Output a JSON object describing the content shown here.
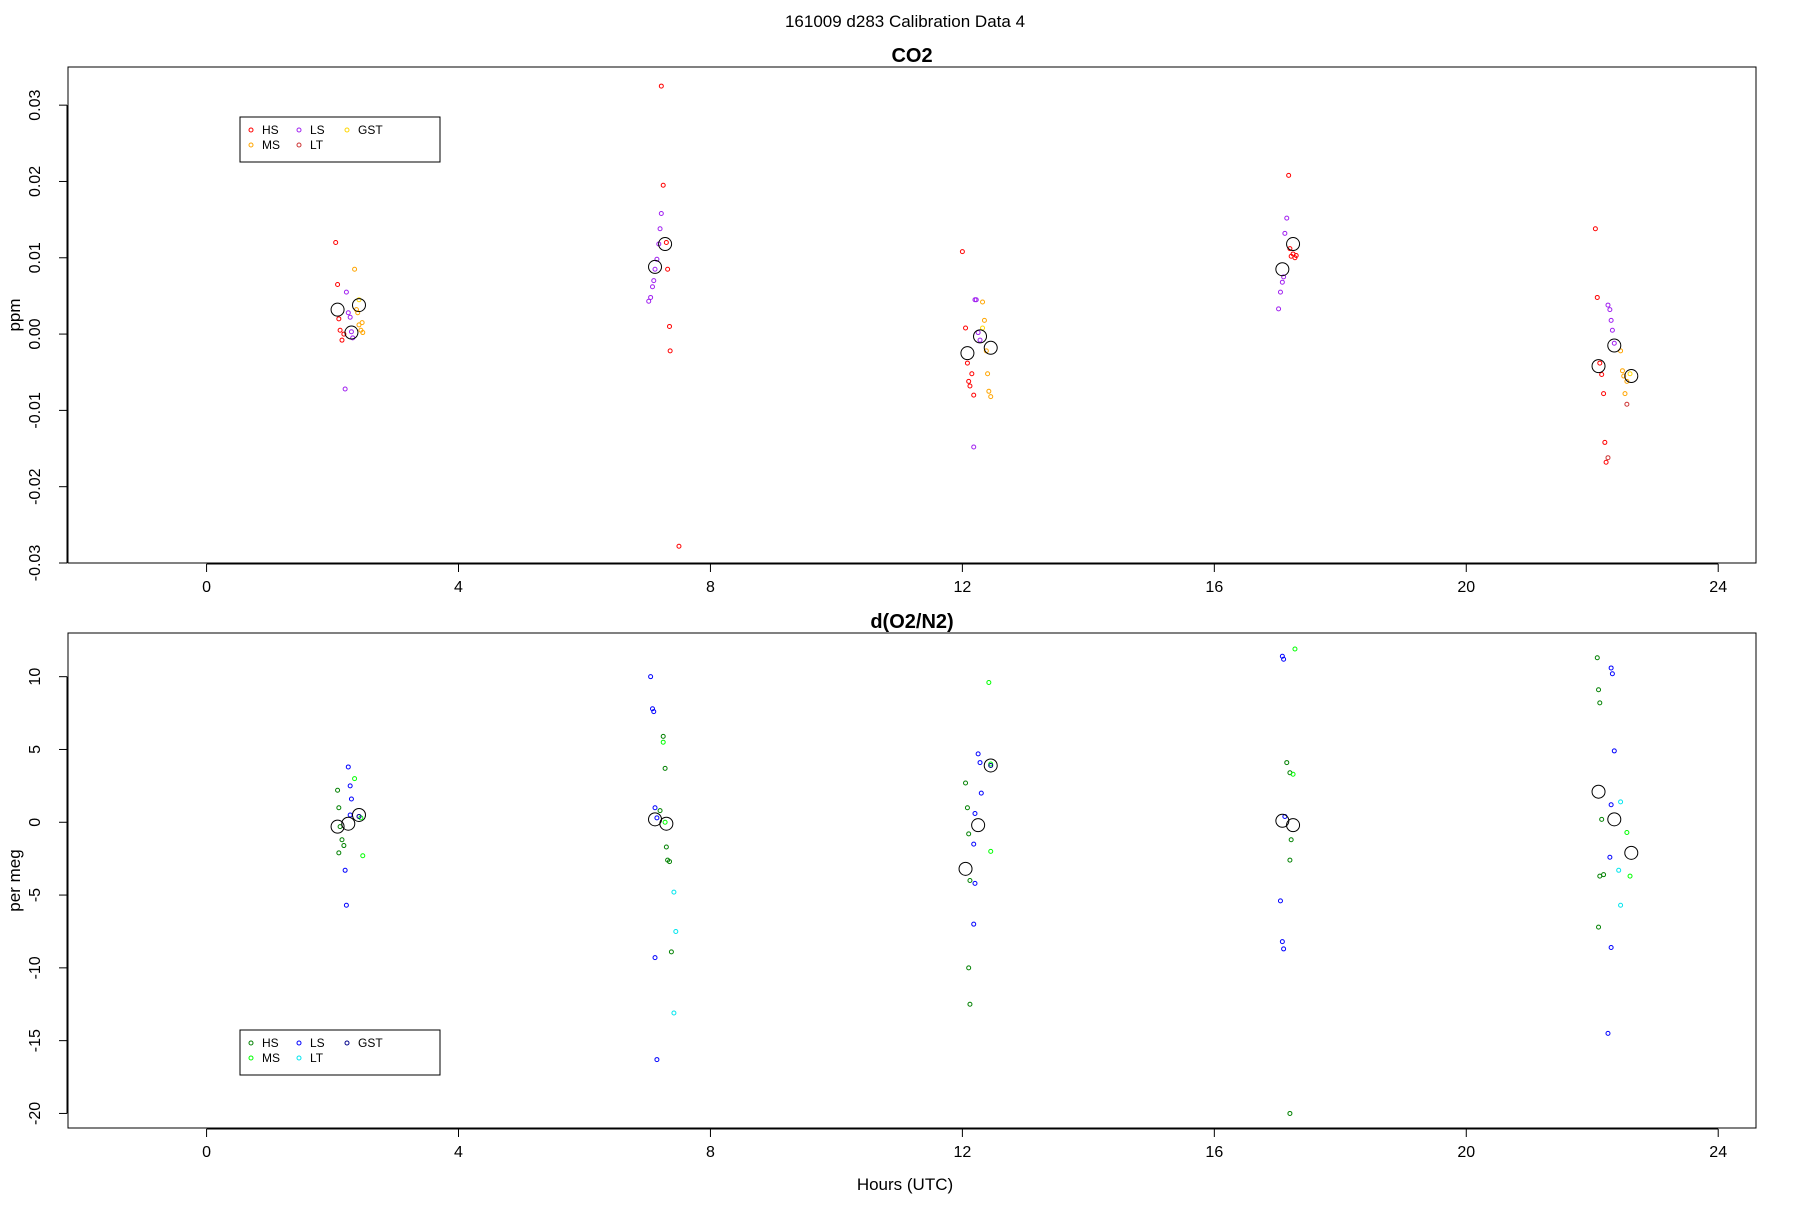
{
  "figure": {
    "title": "161009   d283   Calibration Data 4"
  },
  "colors": {
    "co2": {
      "HS": "#ff0000",
      "MS": "#ffa500",
      "LS": "#a020f0",
      "LT": "#cd3333",
      "GST": "#ffd700"
    },
    "o2": {
      "HS": "#008000",
      "MS": "#00ff00",
      "LS": "#0000ff",
      "LT": "#00e5ee",
      "GST": "#00008b"
    },
    "mean": "#000000"
  },
  "chart_data": [
    {
      "type": "scatter",
      "title": "CO2",
      "xlabel": "",
      "ylabel": "ppm",
      "xlim": [
        -2.2,
        24.6
      ],
      "ylim": [
        -0.03,
        0.035
      ],
      "xticks": [
        "0",
        "4",
        "8",
        "12",
        "16",
        "20",
        "24"
      ],
      "yticks": [
        "-0.03",
        "-0.02",
        "-0.01",
        "0.00",
        "0.01",
        "0.02",
        "0.03"
      ],
      "legend": {
        "position": "top-left",
        "entries": [
          "HS",
          "MS",
          "LS",
          "LT",
          "GST"
        ]
      },
      "series": [
        {
          "name": "HS",
          "points": [
            [
              2.05,
              0.012
            ],
            [
              2.08,
              0.0065
            ],
            [
              2.1,
              0.002
            ],
            [
              2.12,
              0.0005
            ],
            [
              2.15,
              -0.0008
            ],
            [
              2.18,
              0.0
            ],
            [
              7.22,
              0.0325
            ],
            [
              7.25,
              0.0195
            ],
            [
              7.3,
              0.012
            ],
            [
              7.32,
              0.0085
            ],
            [
              7.35,
              0.001
            ],
            [
              7.36,
              -0.0022
            ],
            [
              7.5,
              -0.0278
            ],
            [
              12.0,
              0.0108
            ],
            [
              12.05,
              0.0008
            ],
            [
              12.08,
              -0.0038
            ],
            [
              12.1,
              -0.0062
            ],
            [
              12.12,
              -0.0068
            ],
            [
              12.15,
              -0.0052
            ],
            [
              12.18,
              -0.008
            ],
            [
              17.18,
              0.0208
            ],
            [
              17.2,
              0.0112
            ],
            [
              17.22,
              0.0102
            ],
            [
              17.25,
              0.0105
            ],
            [
              17.28,
              0.01
            ],
            [
              17.3,
              0.0103
            ],
            [
              22.05,
              0.0138
            ],
            [
              22.08,
              0.0048
            ],
            [
              22.12,
              -0.0038
            ],
            [
              22.15,
              -0.0053
            ],
            [
              22.18,
              -0.0078
            ],
            [
              22.2,
              -0.0142
            ],
            [
              22.22,
              -0.0168
            ]
          ]
        },
        {
          "name": "MS",
          "points": [
            [
              2.35,
              0.0085
            ],
            [
              2.38,
              0.0032
            ],
            [
              2.4,
              0.0028
            ],
            [
              2.42,
              0.0012
            ],
            [
              2.45,
              0.0005
            ],
            [
              2.47,
              0.0015
            ],
            [
              2.48,
              0.0002
            ],
            [
              12.32,
              0.0042
            ],
            [
              12.35,
              0.0018
            ],
            [
              12.38,
              -0.0022
            ],
            [
              12.4,
              -0.0052
            ],
            [
              12.42,
              -0.0075
            ],
            [
              12.45,
              -0.0082
            ],
            [
              22.45,
              -0.0022
            ],
            [
              22.48,
              -0.0048
            ],
            [
              22.5,
              -0.0055
            ],
            [
              22.52,
              -0.0078
            ],
            [
              22.55,
              -0.0062
            ]
          ]
        },
        {
          "name": "LS",
          "points": [
            [
              2.22,
              0.0055
            ],
            [
              2.25,
              0.0028
            ],
            [
              2.28,
              0.0022
            ],
            [
              2.3,
              0.0003
            ],
            [
              2.32,
              -0.0005
            ],
            [
              2.2,
              -0.0072
            ],
            [
              7.02,
              0.0043
            ],
            [
              7.05,
              0.0048
            ],
            [
              7.08,
              0.0062
            ],
            [
              7.1,
              0.007
            ],
            [
              7.12,
              0.0085
            ],
            [
              7.15,
              0.0098
            ],
            [
              7.18,
              0.0118
            ],
            [
              7.2,
              0.0138
            ],
            [
              7.22,
              0.0158
            ],
            [
              12.2,
              0.0045
            ],
            [
              12.22,
              0.0045
            ],
            [
              12.25,
              0.0002
            ],
            [
              12.28,
              -0.0008
            ],
            [
              12.18,
              -0.0148
            ],
            [
              17.02,
              0.0033
            ],
            [
              17.05,
              0.0055
            ],
            [
              17.08,
              0.0068
            ],
            [
              17.1,
              0.0075
            ],
            [
              17.12,
              0.0132
            ],
            [
              17.15,
              0.0152
            ],
            [
              22.25,
              0.0038
            ],
            [
              22.28,
              0.0032
            ],
            [
              22.3,
              0.0018
            ],
            [
              22.32,
              0.0005
            ],
            [
              22.35,
              -0.0012
            ]
          ]
        },
        {
          "name": "LT",
          "points": [
            [
              22.25,
              -0.0162
            ],
            [
              22.55,
              -0.0092
            ]
          ]
        },
        {
          "name": "GST",
          "points": [
            [
              2.42,
              0.0045
            ],
            [
              12.32,
              0.0008
            ],
            [
              22.6,
              -0.0052
            ]
          ]
        },
        {
          "name": "Mean",
          "points": [
            [
              2.08,
              0.0032
            ],
            [
              2.3,
              0.0002
            ],
            [
              2.42,
              0.0038
            ],
            [
              7.12,
              0.0088
            ],
            [
              7.28,
              0.0118
            ],
            [
              12.08,
              -0.0025
            ],
            [
              12.28,
              -0.0003
            ],
            [
              12.45,
              -0.0018
            ],
            [
              17.08,
              0.0085
            ],
            [
              17.25,
              0.0118
            ],
            [
              22.1,
              -0.0042
            ],
            [
              22.35,
              -0.0015
            ],
            [
              22.62,
              -0.0055
            ]
          ]
        }
      ]
    },
    {
      "type": "scatter",
      "title": "d(O2/N2)",
      "xlabel": "Hours (UTC)",
      "ylabel": "per meg",
      "xlim": [
        -2.2,
        24.6
      ],
      "ylim": [
        -21,
        13
      ],
      "xticks": [
        "0",
        "4",
        "8",
        "12",
        "16",
        "20",
        "24"
      ],
      "yticks": [
        "-20",
        "-15",
        "-10",
        "-5",
        "0",
        "5",
        "10"
      ],
      "legend": {
        "position": "bottom-left",
        "entries": [
          "HS",
          "MS",
          "LS",
          "LT",
          "GST"
        ]
      },
      "series": [
        {
          "name": "HS",
          "points": [
            [
              2.08,
              2.2
            ],
            [
              2.1,
              1.0
            ],
            [
              2.12,
              -0.3
            ],
            [
              2.15,
              -1.2
            ],
            [
              2.18,
              -1.6
            ],
            [
              2.1,
              -2.1
            ],
            [
              7.2,
              0.8
            ],
            [
              7.25,
              5.9
            ],
            [
              7.28,
              3.7
            ],
            [
              7.3,
              -1.7
            ],
            [
              7.32,
              -2.6
            ],
            [
              7.35,
              -2.7
            ],
            [
              7.38,
              -8.9
            ],
            [
              12.05,
              2.7
            ],
            [
              12.08,
              1.0
            ],
            [
              12.1,
              -0.8
            ],
            [
              12.12,
              -4.0
            ],
            [
              12.1,
              -10.0
            ],
            [
              12.12,
              -12.5
            ],
            [
              17.15,
              4.1
            ],
            [
              17.2,
              3.4
            ],
            [
              17.22,
              -1.2
            ],
            [
              17.2,
              -2.6
            ],
            [
              17.2,
              -20.0
            ],
            [
              22.08,
              11.3
            ],
            [
              22.1,
              9.1
            ],
            [
              22.12,
              8.2
            ],
            [
              22.15,
              0.2
            ],
            [
              22.18,
              -3.6
            ],
            [
              22.12,
              -3.7
            ],
            [
              22.1,
              -7.2
            ]
          ]
        },
        {
          "name": "MS",
          "points": [
            [
              2.35,
              3.0
            ],
            [
              2.45,
              0.3
            ],
            [
              2.48,
              -2.3
            ],
            [
              7.25,
              5.5
            ],
            [
              7.28,
              0.0
            ],
            [
              12.42,
              9.6
            ],
            [
              12.45,
              4.0
            ],
            [
              12.45,
              -2.0
            ],
            [
              17.28,
              11.9
            ],
            [
              17.25,
              3.3
            ],
            [
              22.55,
              -0.7
            ],
            [
              22.6,
              -3.7
            ]
          ]
        },
        {
          "name": "LS",
          "points": [
            [
              2.25,
              3.8
            ],
            [
              2.28,
              2.5
            ],
            [
              2.3,
              1.6
            ],
            [
              2.28,
              0.5
            ],
            [
              2.2,
              -3.3
            ],
            [
              2.22,
              -5.7
            ],
            [
              7.05,
              10.0
            ],
            [
              7.08,
              7.8
            ],
            [
              7.1,
              7.6
            ],
            [
              7.12,
              1.0
            ],
            [
              7.15,
              0.3
            ],
            [
              7.12,
              -9.3
            ],
            [
              7.15,
              -16.3
            ],
            [
              12.25,
              4.7
            ],
            [
              12.28,
              4.1
            ],
            [
              12.3,
              2.0
            ],
            [
              12.2,
              0.6
            ],
            [
              12.18,
              -1.5
            ],
            [
              12.2,
              -4.2
            ],
            [
              12.18,
              -7.0
            ],
            [
              17.08,
              11.4
            ],
            [
              17.1,
              11.2
            ],
            [
              17.12,
              0.4
            ],
            [
              17.05,
              -5.4
            ],
            [
              17.08,
              -8.2
            ],
            [
              17.1,
              -8.7
            ],
            [
              22.3,
              10.6
            ],
            [
              22.32,
              10.2
            ],
            [
              22.35,
              4.9
            ],
            [
              22.3,
              1.2
            ],
            [
              22.28,
              -2.4
            ],
            [
              22.3,
              -8.6
            ],
            [
              22.25,
              -14.5
            ]
          ]
        },
        {
          "name": "LT",
          "points": [
            [
              7.42,
              -4.8
            ],
            [
              7.45,
              -7.5
            ],
            [
              7.42,
              -13.1
            ],
            [
              22.45,
              1.4
            ],
            [
              22.42,
              -3.3
            ],
            [
              22.45,
              -5.7
            ]
          ]
        },
        {
          "name": "GST",
          "points": [
            [
              2.42,
              0.4
            ],
            [
              12.45,
              3.9
            ]
          ]
        },
        {
          "name": "Mean",
          "points": [
            [
              2.08,
              -0.3
            ],
            [
              2.25,
              -0.1
            ],
            [
              2.42,
              0.5
            ],
            [
              7.12,
              0.2
            ],
            [
              7.3,
              -0.1
            ],
            [
              12.05,
              -3.2
            ],
            [
              12.25,
              -0.2
            ],
            [
              12.45,
              3.9
            ],
            [
              17.08,
              0.1
            ],
            [
              17.25,
              -0.2
            ],
            [
              22.1,
              2.1
            ],
            [
              22.35,
              0.2
            ],
            [
              22.62,
              -2.1
            ]
          ]
        }
      ]
    }
  ]
}
